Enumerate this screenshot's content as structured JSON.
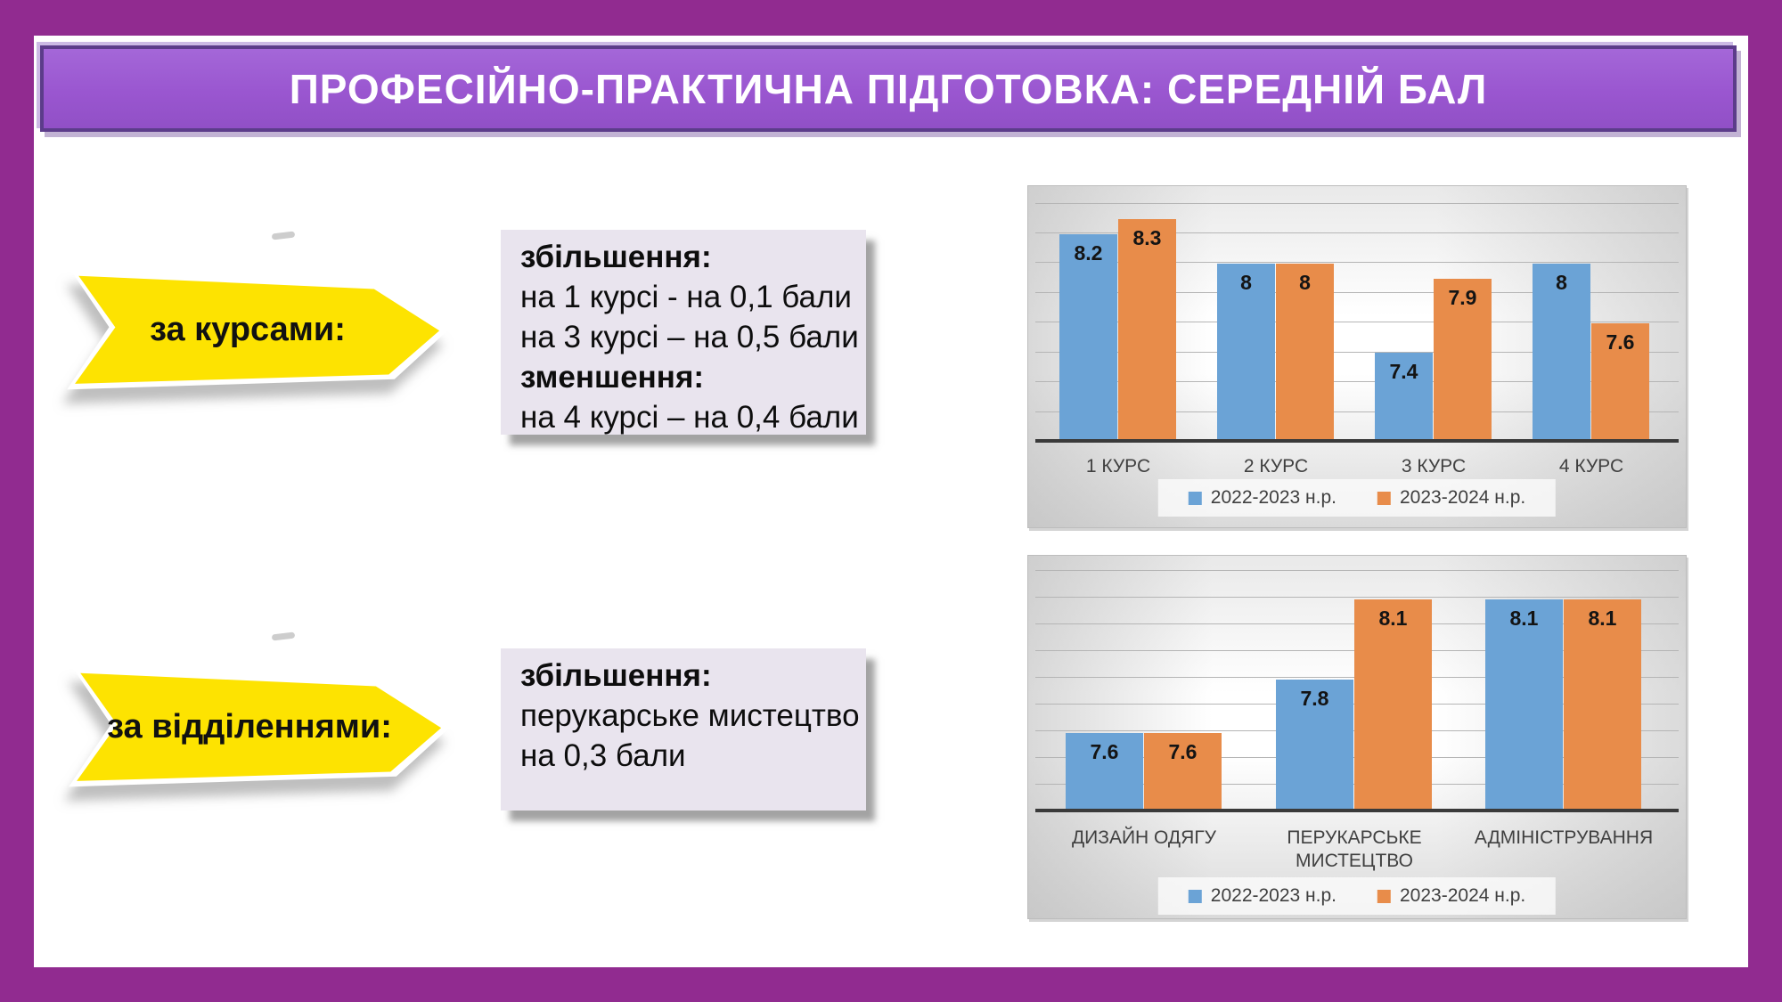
{
  "slide": {
    "title": "ПРОФЕСІЙНО-ПРАКТИЧНА ПІДГОТОВКА: СЕРЕДНІЙ БАЛ",
    "frame_color": "#912b90",
    "banner_fill": "#9a56d0",
    "banner_border": "#5c3c8a",
    "arrow_fill": "#fde301"
  },
  "arrows": [
    {
      "label": "за курсами:"
    },
    {
      "label": "за відділеннями:"
    }
  ],
  "notes": [
    {
      "lines": [
        {
          "text": "збільшення:",
          "bold": true
        },
        {
          "text": "на 1 курсі - на 0,1 бали",
          "bold": false
        },
        {
          "text": "на 3 курсі – на 0,5 бали",
          "bold": false
        },
        {
          "text": "зменшення:",
          "bold": true
        },
        {
          "text": "на 4 курсі – на 0,4 бали",
          "bold": false
        }
      ]
    },
    {
      "lines": [
        {
          "text": "збільшення:",
          "bold": true
        },
        {
          "text": "перукарське мистецтво",
          "bold": false
        },
        {
          "text": "на 0,3 бали",
          "bold": false
        }
      ]
    }
  ],
  "chart_data": [
    {
      "type": "bar",
      "title": "",
      "categories": [
        "1 КУРС",
        "2 КУРС",
        "3 КУРС",
        "4 КУРС"
      ],
      "series": [
        {
          "name": "2022-2023 н.р.",
          "color": "#6ba3d6",
          "values": [
            8.2,
            8,
            7.4,
            8
          ],
          "labels": [
            "8.2",
            "8",
            "7.4",
            "8"
          ]
        },
        {
          "name": "2023-2024 н.р.",
          "color": "#e88c4a",
          "values": [
            8.3,
            8,
            7.9,
            7.6
          ],
          "labels": [
            "8.3",
            "8",
            "7.9",
            "7.6"
          ]
        }
      ],
      "ylim": [
        6.81,
        8.39
      ],
      "grid_step": 0.2,
      "grid": true,
      "data_labels": true,
      "legend_position": "bottom"
    },
    {
      "type": "bar",
      "title": "",
      "categories": [
        "ДИЗАЙН ОДЯГУ",
        "ПЕРУКАРСЬКЕ МИСТЕЦТВО",
        "АДМІНІСТРУВАННЯ"
      ],
      "series": [
        {
          "name": "2022-2023 н.р.",
          "color": "#6ba3d6",
          "values": [
            7.6,
            7.8,
            8.1
          ],
          "labels": [
            "7.6",
            "7.8",
            "8.1"
          ]
        },
        {
          "name": "2023-2024 н.р.",
          "color": "#e88c4a",
          "values": [
            7.6,
            8.1,
            8.1
          ],
          "labels": [
            "7.6",
            "8.1",
            "8.1"
          ]
        }
      ],
      "ylim": [
        7.31,
        8.19
      ],
      "grid_step": 0.1,
      "grid": true,
      "data_labels": true,
      "legend_position": "bottom"
    }
  ]
}
